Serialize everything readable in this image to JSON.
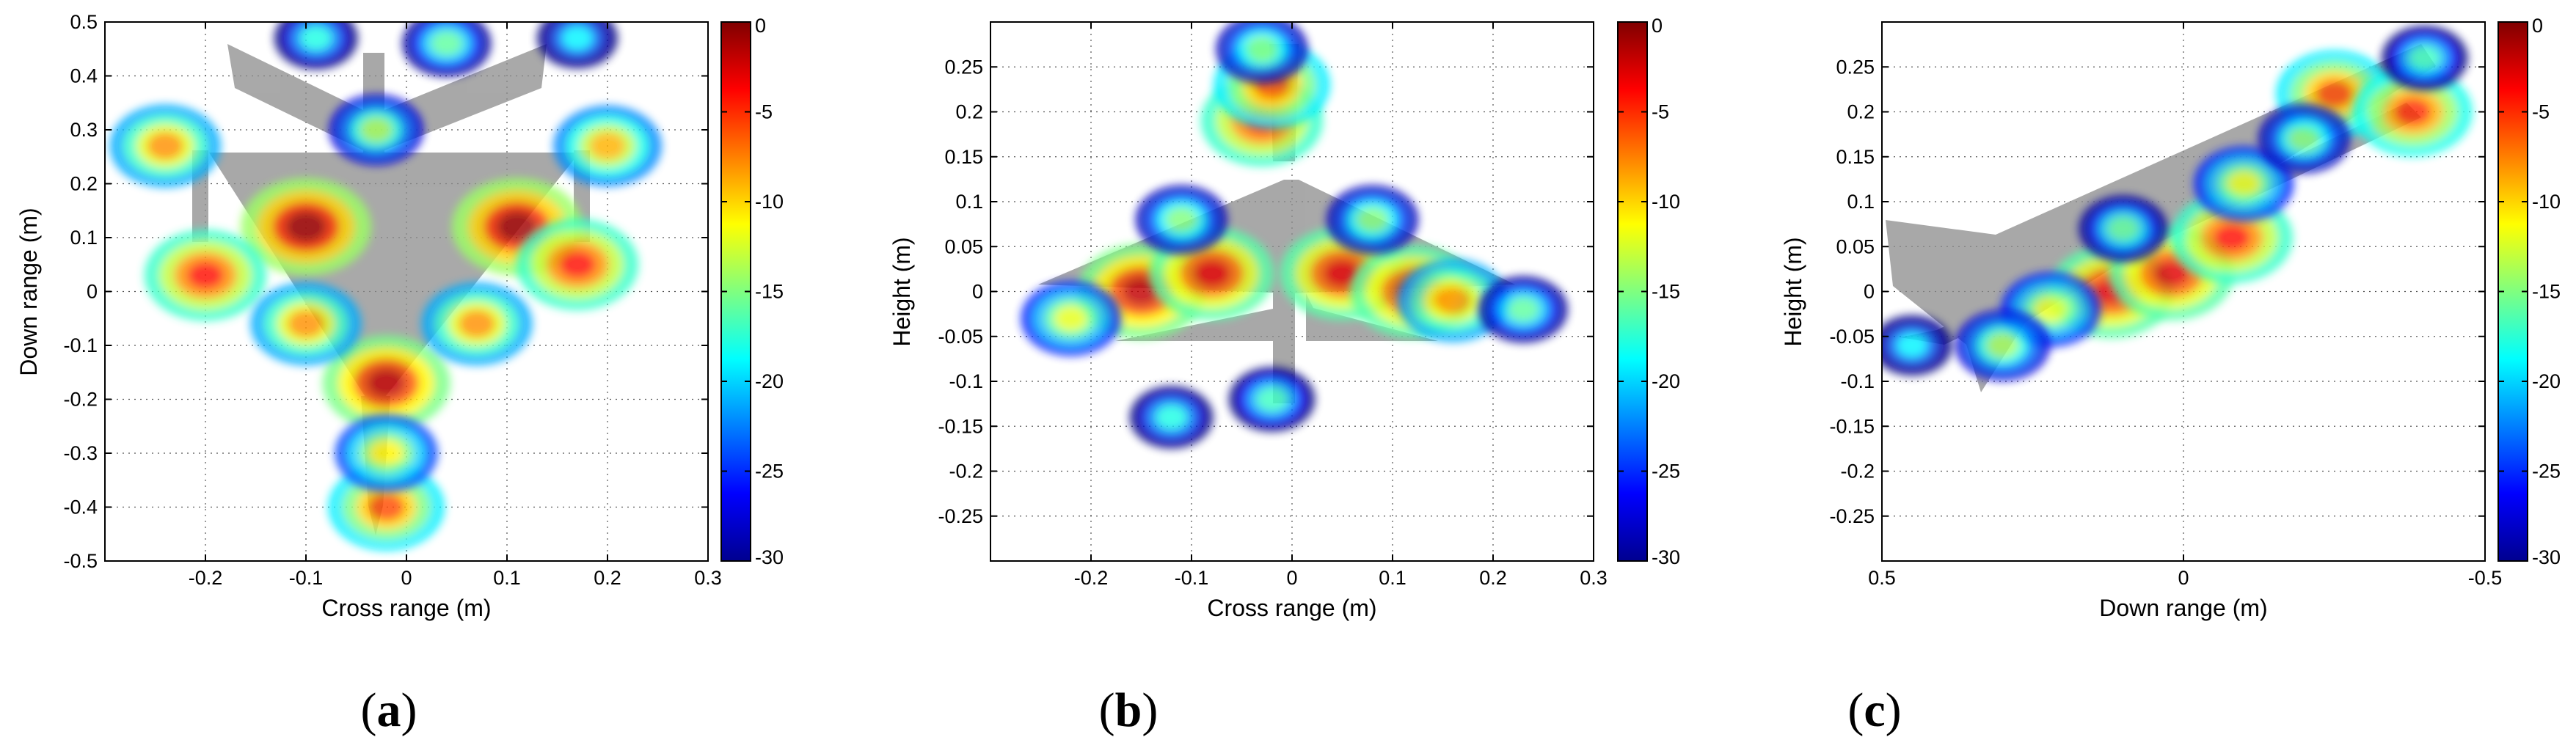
{
  "figure": {
    "colormap": "jet",
    "panel_label_color": "#000000",
    "silhouette_color": "#8c8c8c"
  },
  "chart_data": [
    {
      "type": "heatmap",
      "panel": "(a)",
      "panel_letter": "a",
      "xlabel": "Cross range (m)",
      "ylabel": "Down range (m)",
      "xlim": [
        -0.3,
        0.3
      ],
      "ylim": [
        -0.5,
        0.5
      ],
      "x_reversed": false,
      "xticks": [
        -0.2,
        -0.1,
        0,
        0.1,
        0.2,
        0.3
      ],
      "xtick_labels": [
        "-0.2",
        "-0.1",
        "0",
        "0.1",
        "0.2",
        "0.3"
      ],
      "yticks": [
        -0.5,
        -0.4,
        -0.3,
        -0.2,
        -0.1,
        0,
        0.1,
        0.2,
        0.3,
        0.4,
        0.5
      ],
      "ytick_labels": [
        "-0.5",
        "-0.4",
        "-0.3",
        "-0.2",
        "-0.1",
        "0",
        "0.1",
        "0.2",
        "0.3",
        "0.4",
        "0.5"
      ],
      "grid": true,
      "grid_style": "dotted",
      "colorbar": {
        "range": [
          -30,
          0
        ],
        "ticks": [
          0,
          -5,
          -10,
          -15,
          -20,
          -25,
          -30
        ],
        "tick_labels": [
          "0",
          "-5",
          "-10",
          "-15",
          "-20",
          "-25",
          "-30"
        ]
      },
      "scattering_centers_dB": [
        {
          "x": -0.1,
          "y": 0.12,
          "level": -1
        },
        {
          "x": 0.11,
          "y": 0.12,
          "level": -1
        },
        {
          "x": -0.02,
          "y": -0.17,
          "level": -2
        },
        {
          "x": -0.02,
          "y": -0.4,
          "level": -6
        },
        {
          "x": -0.24,
          "y": 0.27,
          "level": -8
        },
        {
          "x": 0.2,
          "y": 0.27,
          "level": -9
        },
        {
          "x": -0.2,
          "y": 0.03,
          "level": -4
        },
        {
          "x": 0.17,
          "y": 0.05,
          "level": -4
        },
        {
          "x": -0.1,
          "y": -0.06,
          "level": -8
        },
        {
          "x": 0.07,
          "y": -0.06,
          "level": -8
        },
        {
          "x": -0.02,
          "y": -0.3,
          "level": -11
        },
        {
          "x": -0.03,
          "y": 0.3,
          "level": -14
        },
        {
          "x": 0.04,
          "y": 0.46,
          "level": -16
        },
        {
          "x": -0.09,
          "y": 0.47,
          "level": -18
        },
        {
          "x": 0.17,
          "y": 0.47,
          "level": -19
        }
      ]
    },
    {
      "type": "heatmap",
      "panel": "(b)",
      "panel_letter": "b",
      "xlabel": "Cross range (m)",
      "ylabel": "Height (m)",
      "xlim": [
        -0.3,
        0.3
      ],
      "ylim": [
        -0.3,
        0.3
      ],
      "x_reversed": false,
      "xticks": [
        -0.2,
        -0.1,
        0,
        0.1,
        0.2,
        0.3
      ],
      "xtick_labels": [
        "-0.2",
        "-0.1",
        "0",
        "0.1",
        "0.2",
        "0.3"
      ],
      "yticks": [
        -0.25,
        -0.2,
        -0.15,
        -0.1,
        -0.05,
        0,
        0.05,
        0.1,
        0.15,
        0.2,
        0.25
      ],
      "ytick_labels": [
        "-0.25",
        "-0.2",
        "-0.15",
        "-0.1",
        "-0.05",
        "0",
        "0.05",
        "0.1",
        "0.15",
        "0.2",
        "0.25"
      ],
      "grid": true,
      "grid_style": "dotted",
      "colorbar": {
        "range": [
          -30,
          0
        ],
        "ticks": [
          0,
          -5,
          -10,
          -15,
          -20,
          -25,
          -30
        ],
        "tick_labels": [
          "0",
          "-5",
          "-10",
          "-15",
          "-20",
          "-25",
          "-30"
        ]
      },
      "scattering_centers_dB": [
        {
          "x": -0.15,
          "y": 0.0,
          "level": -2
        },
        {
          "x": -0.08,
          "y": 0.02,
          "level": -3
        },
        {
          "x": 0.05,
          "y": 0.02,
          "level": -3
        },
        {
          "x": 0.12,
          "y": 0.0,
          "level": -3
        },
        {
          "x": -0.03,
          "y": 0.19,
          "level": -4
        },
        {
          "x": -0.02,
          "y": 0.23,
          "level": -6
        },
        {
          "x": 0.16,
          "y": -0.01,
          "level": -8
        },
        {
          "x": -0.22,
          "y": -0.03,
          "level": -12
        },
        {
          "x": -0.11,
          "y": 0.08,
          "level": -15
        },
        {
          "x": 0.08,
          "y": 0.08,
          "level": -15
        },
        {
          "x": -0.02,
          "y": -0.12,
          "level": -17
        },
        {
          "x": -0.12,
          "y": -0.14,
          "level": -18
        },
        {
          "x": 0.23,
          "y": -0.02,
          "level": -16
        },
        {
          "x": -0.03,
          "y": 0.27,
          "level": -15
        }
      ]
    },
    {
      "type": "heatmap",
      "panel": "(c)",
      "panel_letter": "c",
      "xlabel": "Down range (m)",
      "ylabel": "Height (m)",
      "xlim": [
        0.5,
        -0.5
      ],
      "ylim": [
        -0.3,
        0.3
      ],
      "x_reversed": true,
      "xticks": [
        0.5,
        0,
        -0.5
      ],
      "xtick_labels": [
        "0.5",
        "0",
        "-0.5"
      ],
      "yticks": [
        -0.25,
        -0.2,
        -0.15,
        -0.1,
        -0.05,
        0,
        0.05,
        0.1,
        0.15,
        0.2,
        0.25
      ],
      "ytick_labels": [
        "-0.25",
        "-0.2",
        "-0.15",
        "-0.1",
        "-0.05",
        "0",
        "0.05",
        "0.1",
        "0.15",
        "0.2",
        "0.25"
      ],
      "grid": true,
      "grid_style": "dotted",
      "colorbar": {
        "range": [
          -30,
          0
        ],
        "ticks": [
          0,
          -5,
          -10,
          -15,
          -20,
          -25,
          -30
        ],
        "tick_labels": [
          "0",
          "-5",
          "-10",
          "-15",
          "-20",
          "-25",
          "-30"
        ]
      },
      "scattering_centers_dB": [
        {
          "x": 0.12,
          "y": 0.0,
          "level": -3
        },
        {
          "x": 0.02,
          "y": 0.02,
          "level": -3
        },
        {
          "x": -0.08,
          "y": 0.06,
          "level": -4
        },
        {
          "x": -0.25,
          "y": 0.22,
          "level": -6
        },
        {
          "x": -0.38,
          "y": 0.2,
          "level": -5
        },
        {
          "x": -0.1,
          "y": 0.12,
          "level": -12
        },
        {
          "x": 0.22,
          "y": -0.02,
          "level": -12
        },
        {
          "x": 0.3,
          "y": -0.06,
          "level": -14
        },
        {
          "x": -0.2,
          "y": 0.17,
          "level": -15
        },
        {
          "x": 0.1,
          "y": 0.07,
          "level": -16
        },
        {
          "x": -0.4,
          "y": 0.26,
          "level": -17
        },
        {
          "x": 0.45,
          "y": -0.06,
          "level": -19
        }
      ]
    }
  ]
}
